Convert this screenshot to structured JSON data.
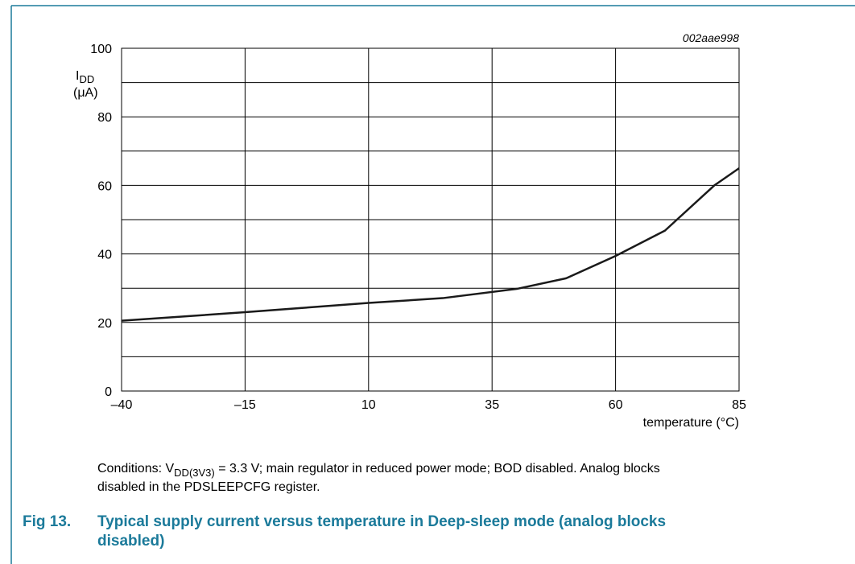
{
  "chart_data": {
    "type": "line",
    "code": "002aae998",
    "y_label": {
      "main": "I",
      "subscript": "DD",
      "unit": "(μA)"
    },
    "x_label": "temperature (°C)",
    "x": [
      -40,
      -15,
      10,
      25,
      40,
      50,
      60,
      70,
      80,
      85
    ],
    "series": [
      {
        "color": "#1a1a1a",
        "values": [
          20.5,
          23,
          25.7,
          27.1,
          29.8,
          32.9,
          39.4,
          46.8,
          60,
          65
        ]
      }
    ],
    "xlim": [
      -40,
      85
    ],
    "xticks": [
      {
        "value": -40,
        "label": "–40"
      },
      {
        "value": -15,
        "label": "–15"
      },
      10,
      35,
      60,
      85
    ],
    "ylim": [
      0,
      100
    ],
    "yticks": [
      0,
      20,
      40,
      60,
      80,
      100
    ],
    "ygrid": [
      0,
      10,
      20,
      30,
      40,
      50,
      60,
      70,
      80,
      90,
      100
    ],
    "grid": true
  },
  "conditions": {
    "prefix": "Conditions: V",
    "subscript": "DD(3V3)",
    "line_1_rest": " = 3.3 V; main regulator in reduced power mode; BOD disabled. Analog blocks",
    "line_2": "disabled in the PDSLEEPCFG register."
  },
  "caption": {
    "number": "Fig 13.",
    "line_1": "Typical supply current versus temperature in Deep-sleep mode (analog blocks",
    "line_2": "disabled)"
  }
}
